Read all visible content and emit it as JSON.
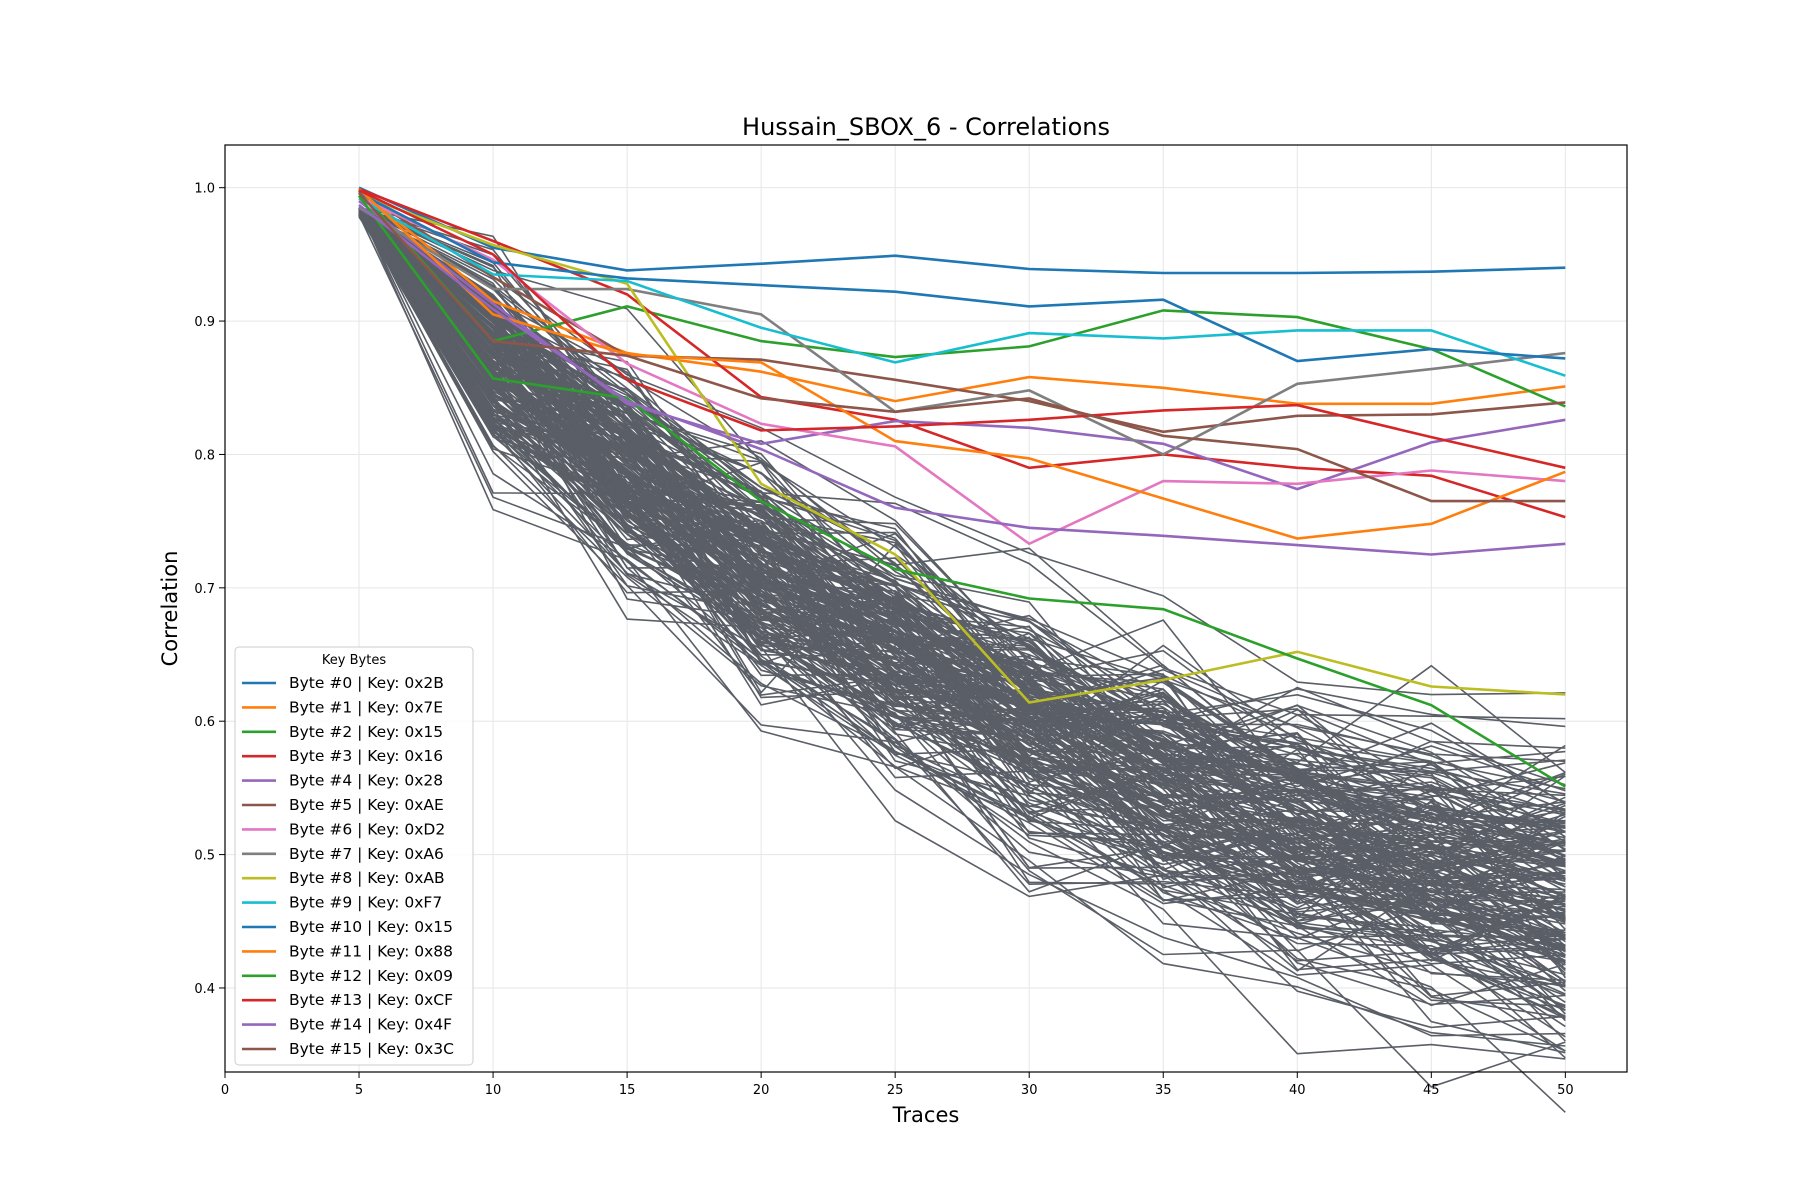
{
  "chart_data": {
    "type": "line",
    "title": "Hussain_SBOX_6 - Correlations",
    "xlabel": "Traces",
    "ylabel": "Correlation",
    "xlim": [
      0,
      52.3
    ],
    "ylim": [
      0.337,
      1.032
    ],
    "xticks": [
      0,
      5,
      10,
      15,
      20,
      25,
      30,
      35,
      40,
      45,
      50
    ],
    "yticks": [
      0.4,
      0.5,
      0.6,
      0.7,
      0.8,
      0.9,
      1.0
    ],
    "ytick_labels": [
      "0.4",
      "0.5",
      "0.6",
      "0.7",
      "0.8",
      "0.9",
      "1.0"
    ],
    "grid": true,
    "x": [
      5,
      10,
      15,
      20,
      25,
      30,
      35,
      40,
      45,
      50
    ],
    "legend": {
      "title": "Key Bytes",
      "placement": "lower left"
    },
    "background_series": {
      "color": "#5a5e66",
      "count": 240,
      "note_visible": false
    },
    "series": [
      {
        "name": "Byte #0 | Key: 0x2B",
        "color": "#1f77b4",
        "values": [
          1.0,
          0.955,
          0.938,
          0.943,
          0.949,
          0.939,
          0.936,
          0.936,
          0.937,
          0.94
        ]
      },
      {
        "name": "Byte #1 | Key: 0x7E",
        "color": "#ff7f0e",
        "values": [
          0.999,
          0.915,
          0.876,
          0.862,
          0.84,
          0.858,
          0.85,
          0.838,
          0.838,
          0.851
        ]
      },
      {
        "name": "Byte #2 | Key: 0x15",
        "color": "#2ca02c",
        "values": [
          0.998,
          0.885,
          0.911,
          0.885,
          0.873,
          0.881,
          0.908,
          0.903,
          0.879,
          0.836
        ]
      },
      {
        "name": "Byte #3 | Key: 0x16",
        "color": "#d62728",
        "values": [
          0.999,
          0.96,
          0.92,
          0.843,
          0.826,
          0.79,
          0.8,
          0.79,
          0.784,
          0.753
        ]
      },
      {
        "name": "Byte #4 | Key: 0x28",
        "color": "#9467bd",
        "values": [
          0.99,
          0.913,
          0.838,
          0.808,
          0.825,
          0.82,
          0.808,
          0.774,
          0.809,
          0.826
        ]
      },
      {
        "name": "Byte #5 | Key: 0xAE",
        "color": "#8c564b",
        "values": [
          0.997,
          0.933,
          0.874,
          0.871,
          0.856,
          0.84,
          0.817,
          0.829,
          0.83,
          0.839
        ]
      },
      {
        "name": "Byte #6 | Key: 0xD2",
        "color": "#e377c2",
        "values": [
          0.993,
          0.946,
          0.868,
          0.823,
          0.806,
          0.733,
          0.78,
          0.778,
          0.788,
          0.78
        ]
      },
      {
        "name": "Byte #7 | Key: 0xA6",
        "color": "#7f7f7f",
        "values": [
          0.985,
          0.924,
          0.924,
          0.905,
          0.832,
          0.848,
          0.8,
          0.853,
          0.864,
          0.876
        ]
      },
      {
        "name": "Byte #8 | Key: 0xAB",
        "color": "#bcbd22",
        "values": [
          0.995,
          0.957,
          0.928,
          0.778,
          0.725,
          0.614,
          0.631,
          0.652,
          0.626,
          0.62
        ]
      },
      {
        "name": "Byte #9 | Key: 0xF7",
        "color": "#17becf",
        "values": [
          0.992,
          0.935,
          0.93,
          0.895,
          0.869,
          0.891,
          0.887,
          0.893,
          0.893,
          0.859
        ]
      },
      {
        "name": "Byte #10 | Key: 0x15",
        "color": "#1f77b4",
        "values": [
          0.996,
          0.944,
          0.932,
          0.927,
          0.922,
          0.911,
          0.916,
          0.87,
          0.879,
          0.872
        ]
      },
      {
        "name": "Byte #11 | Key: 0x88",
        "color": "#ff7f0e",
        "values": [
          0.999,
          0.905,
          0.875,
          0.869,
          0.81,
          0.797,
          0.767,
          0.737,
          0.748,
          0.787
        ]
      },
      {
        "name": "Byte #12 | Key: 0x09",
        "color": "#2ca02c",
        "values": [
          0.994,
          0.857,
          0.842,
          0.765,
          0.714,
          0.692,
          0.684,
          0.647,
          0.612,
          0.551
        ]
      },
      {
        "name": "Byte #13 | Key: 0xCF",
        "color": "#d62728",
        "values": [
          0.998,
          0.95,
          0.856,
          0.818,
          0.821,
          0.826,
          0.833,
          0.837,
          0.813,
          0.79
        ]
      },
      {
        "name": "Byte #14 | Key: 0x4F",
        "color": "#9467bd",
        "values": [
          0.987,
          0.909,
          0.84,
          0.804,
          0.76,
          0.745,
          0.739,
          0.732,
          0.725,
          0.733
        ]
      },
      {
        "name": "Byte #15 | Key: 0x3C",
        "color": "#8c564b",
        "values": [
          0.996,
          0.885,
          0.874,
          0.842,
          0.832,
          0.842,
          0.814,
          0.804,
          0.765,
          0.765
        ]
      }
    ]
  }
}
